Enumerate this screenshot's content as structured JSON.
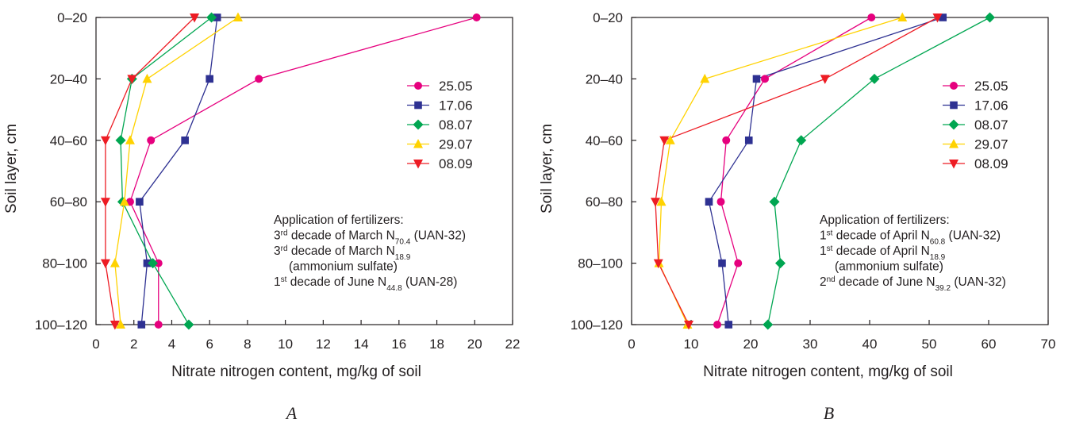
{
  "chart_data": [
    {
      "type": "line",
      "panel_label": "A",
      "xlabel": "Nitrate nitrogen content, mg/kg of soil",
      "ylabel": "Soil layer, cm",
      "xlim": [
        0,
        22
      ],
      "xticks": [
        0,
        2,
        4,
        6,
        8,
        10,
        12,
        14,
        16,
        18,
        20,
        22
      ],
      "categories": [
        "0–20",
        "20–40",
        "40–60",
        "60–80",
        "80–100",
        "100–120"
      ],
      "legend_placement": "right",
      "grid": false,
      "series": [
        {
          "name": "25.05",
          "color": "#e6007e",
          "marker": "circle",
          "values": [
            20.1,
            8.6,
            2.9,
            1.8,
            3.3,
            3.3
          ]
        },
        {
          "name": "17.06",
          "color": "#2e3192",
          "marker": "square",
          "values": [
            6.4,
            6.0,
            4.7,
            2.3,
            2.7,
            2.4
          ]
        },
        {
          "name": "08.07",
          "color": "#00a651",
          "marker": "diamond",
          "values": [
            6.1,
            1.9,
            1.3,
            1.4,
            3.0,
            4.9
          ]
        },
        {
          "name": "29.07",
          "color": "#ffd200",
          "marker": "triangle-up",
          "values": [
            7.5,
            2.7,
            1.8,
            1.5,
            1.0,
            1.3
          ]
        },
        {
          "name": "08.09",
          "color": "#ed1c24",
          "marker": "triangle-down",
          "values": [
            5.2,
            1.9,
            0.5,
            0.5,
            0.5,
            1.0
          ]
        }
      ],
      "annotation": [
        {
          "parts": [
            {
              "t": "Application of fertilizers:"
            }
          ],
          "indent": false
        },
        {
          "parts": [
            {
              "t": "3"
            },
            {
              "t": "rd",
              "sup": true
            },
            {
              "t": " decade of March N"
            },
            {
              "t": "70.4",
              "sub": true
            },
            {
              "t": " (UAN-32)"
            }
          ],
          "indent": false
        },
        {
          "parts": [
            {
              "t": "3"
            },
            {
              "t": "rd",
              "sup": true
            },
            {
              "t": " decade of March N"
            },
            {
              "t": "18.9",
              "sub": true
            }
          ],
          "indent": false
        },
        {
          "parts": [
            {
              "t": "(ammonium sulfate)"
            }
          ],
          "indent": true
        },
        {
          "parts": [
            {
              "t": "1"
            },
            {
              "t": "st",
              "sup": true
            },
            {
              "t": " decade of June N"
            },
            {
              "t": "44.8",
              "sub": true
            },
            {
              "t": " (UAN-28)"
            }
          ],
          "indent": false
        }
      ]
    },
    {
      "type": "line",
      "panel_label": "B",
      "xlabel": "Nitrate nitrogen content, mg/kg of soil",
      "ylabel": "Soil layer, cm",
      "xlim": [
        0,
        70
      ],
      "xticks": [
        0,
        10,
        20,
        30,
        40,
        50,
        60,
        70
      ],
      "categories": [
        "0–20",
        "20–40",
        "40–60",
        "60–80",
        "80–100",
        "100–120"
      ],
      "legend_placement": "right",
      "grid": false,
      "series": [
        {
          "name": "25.05",
          "color": "#e6007e",
          "marker": "circle",
          "values": [
            40.3,
            22.4,
            15.9,
            15.0,
            17.9,
            14.4
          ]
        },
        {
          "name": "17.06",
          "color": "#2e3192",
          "marker": "square",
          "values": [
            52.3,
            21.0,
            19.7,
            13.0,
            15.2,
            16.3
          ]
        },
        {
          "name": "08.07",
          "color": "#00a651",
          "marker": "diamond",
          "values": [
            60.2,
            40.8,
            28.5,
            24.0,
            25.0,
            22.9
          ]
        },
        {
          "name": "29.07",
          "color": "#ffd200",
          "marker": "triangle-up",
          "values": [
            45.5,
            12.3,
            6.5,
            5.0,
            4.6,
            9.4
          ]
        },
        {
          "name": "08.09",
          "color": "#ed1c24",
          "marker": "triangle-down",
          "values": [
            51.4,
            32.5,
            5.5,
            4.0,
            4.5,
            9.6
          ]
        }
      ],
      "annotation": [
        {
          "parts": [
            {
              "t": "Application of fertilizers:"
            }
          ],
          "indent": false
        },
        {
          "parts": [
            {
              "t": "1"
            },
            {
              "t": "st",
              "sup": true
            },
            {
              "t": " decade of April N"
            },
            {
              "t": "60.8",
              "sub": true
            },
            {
              "t": " (UAN-32)"
            }
          ],
          "indent": false
        },
        {
          "parts": [
            {
              "t": "1"
            },
            {
              "t": "st",
              "sup": true
            },
            {
              "t": " decade of April N"
            },
            {
              "t": "18.9",
              "sub": true
            }
          ],
          "indent": false
        },
        {
          "parts": [
            {
              "t": "(ammonium sulfate)"
            }
          ],
          "indent": true
        },
        {
          "parts": [
            {
              "t": "2"
            },
            {
              "t": "nd",
              "sup": true
            },
            {
              "t": " decade of June N"
            },
            {
              "t": "39.2",
              "sub": true
            },
            {
              "t": " (UAN-32)"
            }
          ],
          "indent": false
        }
      ]
    }
  ]
}
